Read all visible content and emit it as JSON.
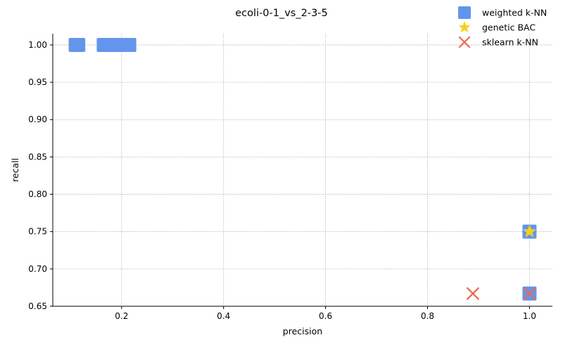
{
  "chart_data": {
    "type": "scatter",
    "title": "ecoli-0-1_vs_2-3-5",
    "xlabel": "precision",
    "ylabel": "recall",
    "xlim": [
      0.065,
      1.045
    ],
    "ylim": [
      0.65,
      1.015
    ],
    "xticks": [
      0.2,
      0.4,
      0.6,
      0.8,
      1.0
    ],
    "xtick_labels": [
      "0.2",
      "0.4",
      "0.6",
      "0.8",
      "1.0"
    ],
    "yticks": [
      0.65,
      0.7,
      0.75,
      0.8,
      0.85,
      0.9,
      0.95,
      1.0
    ],
    "ytick_labels": [
      "0.65",
      "0.70",
      "0.75",
      "0.80",
      "0.85",
      "0.90",
      "0.95",
      "1.00"
    ],
    "grid": true,
    "legend_position": "top-right",
    "series": [
      {
        "name": "weighted k-NN",
        "marker": "square",
        "color": "#6495ED",
        "x": [
          0.11,
          0.115,
          0.165,
          0.18,
          0.195,
          0.215,
          1.0,
          1.0
        ],
        "y": [
          1.0,
          1.0,
          1.0,
          1.0,
          1.0,
          1.0,
          0.75,
          0.667
        ]
      },
      {
        "name": "genetic BAC",
        "marker": "star",
        "color": "#F5D11A",
        "x": [
          1.0
        ],
        "y": [
          0.75
        ]
      },
      {
        "name": "sklearn k-NN",
        "marker": "x",
        "color": "#F0684B",
        "x": [
          0.889,
          1.0
        ],
        "y": [
          0.667,
          0.667
        ]
      }
    ]
  }
}
